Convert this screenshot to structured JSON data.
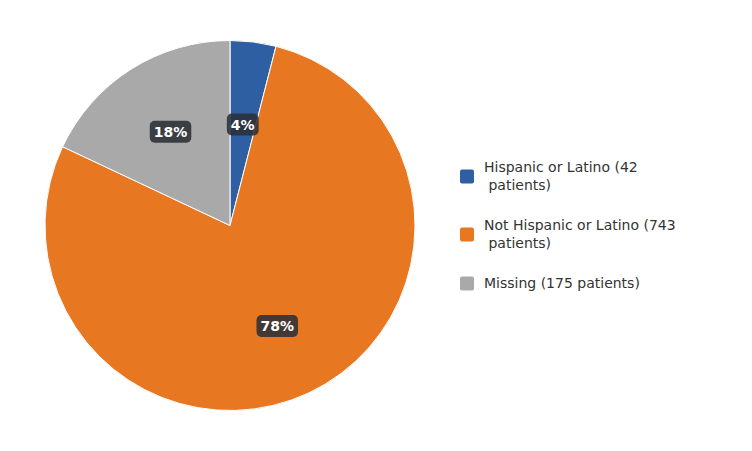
{
  "chart_data": {
    "type": "pie",
    "categories": [
      "Hispanic or Latino (42\n patients)",
      "Not Hispanic or Latino (743\n patients)",
      "Missing (175 patients)"
    ],
    "values": [
      4,
      78,
      18
    ],
    "value_labels": [
      "4%",
      "78%",
      "18%"
    ],
    "colors": [
      "#2E5FA3",
      "#E87722",
      "#A9A9A9"
    ],
    "data_labels": true,
    "legend": "right"
  }
}
